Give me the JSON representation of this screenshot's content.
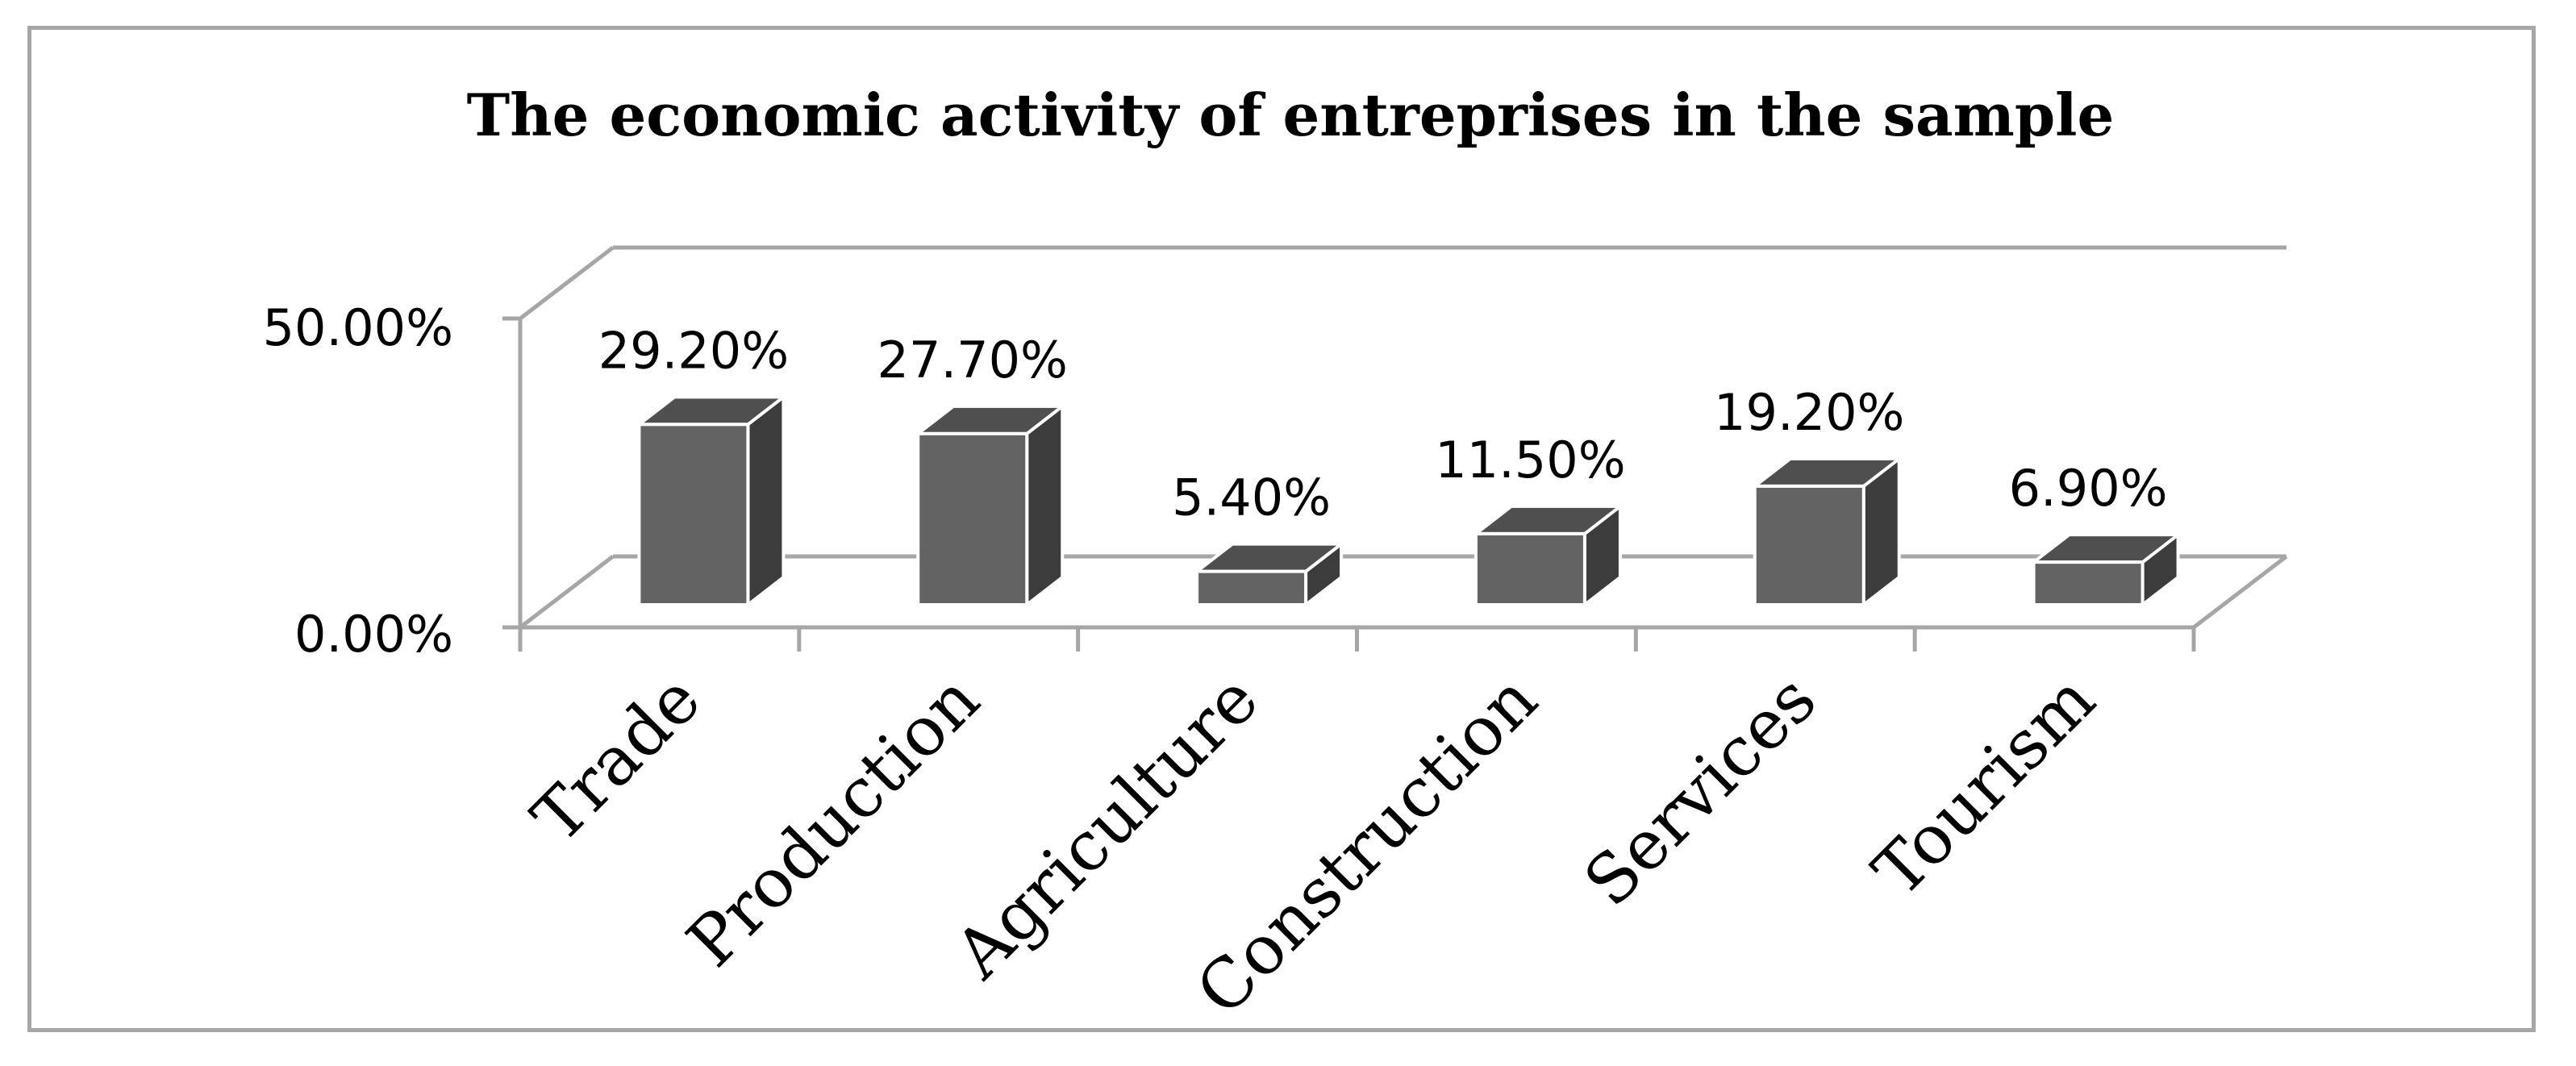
{
  "chart_data": {
    "type": "bar",
    "title": "The economic activity of entreprises in the sample",
    "categories": [
      "Trade",
      "Production",
      "Agriculture",
      "Construction",
      "Services",
      "Tourism"
    ],
    "values": [
      29.2,
      27.7,
      5.4,
      11.5,
      19.2,
      6.9
    ],
    "value_labels": [
      "29.20%",
      "27.70%",
      "5.40%",
      "11.50%",
      "19.20%",
      "6.90%"
    ],
    "ylim": [
      0,
      50
    ],
    "ytick_labels": [
      "0.00%",
      "50.00%"
    ],
    "xlabel": "",
    "ylabel": "",
    "style": "3d-column",
    "colors": {
      "bar_front": "#636363",
      "bar_top": "#4f4f4f",
      "bar_side": "#3c3c3c",
      "bar_edge": "#ffffff",
      "axis": "#a6a6a6"
    }
  }
}
